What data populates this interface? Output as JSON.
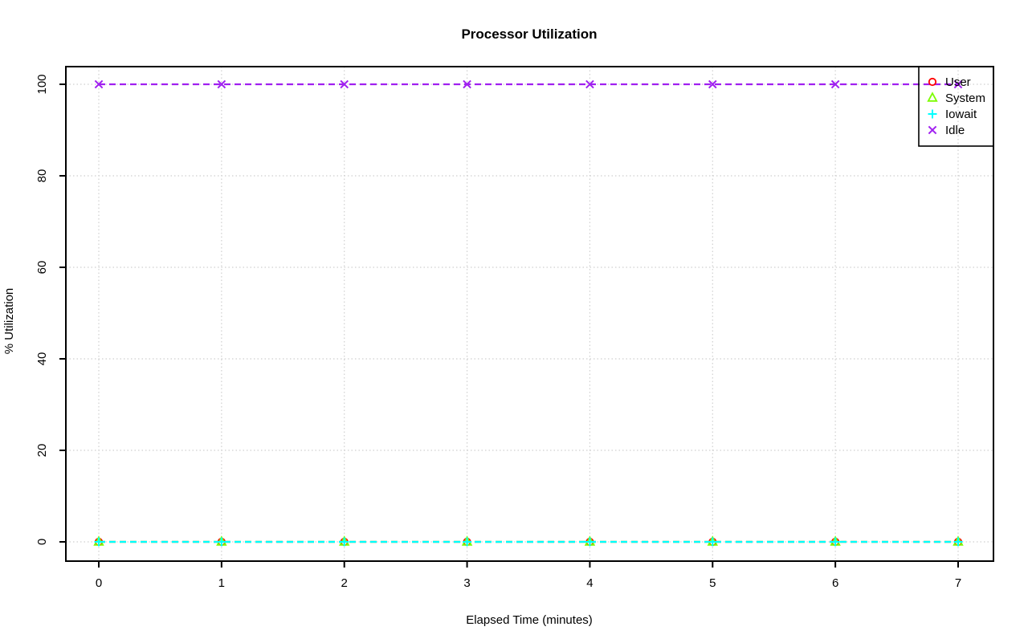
{
  "page": {
    "background_color": "#FFFFFF"
  },
  "chart_data": {
    "type": "line",
    "title": "Processor Utilization",
    "xlabel": "Elapsed Time (minutes)",
    "ylabel": "% Utilization",
    "x": [
      0,
      1,
      2,
      3,
      4,
      5,
      6,
      7
    ],
    "x_ticks": [
      "0",
      "1",
      "2",
      "3",
      "4",
      "5",
      "6",
      "7"
    ],
    "y_ticks": [
      "0",
      "20",
      "40",
      "60",
      "80",
      "100"
    ],
    "y_tick_values": [
      0,
      20,
      40,
      60,
      80,
      100
    ],
    "xlim": [
      0,
      7
    ],
    "ylim": [
      0,
      100
    ],
    "grid": {
      "visible": true,
      "style": "dotted",
      "color": "#CFCFCF"
    },
    "axis_color": "#000000",
    "legend": {
      "position": "top-right",
      "border_color": "#000000",
      "background": "transparent",
      "entries": [
        {
          "label": "User",
          "marker": "circle",
          "color": "#FF0000"
        },
        {
          "label": "System",
          "marker": "triangle",
          "color": "#7CFC00"
        },
        {
          "label": "Iowait",
          "marker": "plus",
          "color": "#00FFFF"
        },
        {
          "label": "Idle",
          "marker": "x",
          "color": "#A020F0"
        }
      ]
    },
    "series": [
      {
        "name": "User",
        "marker": "circle",
        "color": "#FF0000",
        "linestyle": "dashed",
        "values": [
          0,
          0,
          0,
          0,
          0,
          0,
          0,
          0
        ]
      },
      {
        "name": "System",
        "marker": "triangle",
        "color": "#7CFC00",
        "linestyle": "dashed",
        "values": [
          0,
          0,
          0,
          0,
          0,
          0,
          0,
          0
        ]
      },
      {
        "name": "Iowait",
        "marker": "plus",
        "color": "#00FFFF",
        "linestyle": "dashed",
        "values": [
          0,
          0,
          0,
          0,
          0,
          0,
          0,
          0
        ]
      },
      {
        "name": "Idle",
        "marker": "x",
        "color": "#A020F0",
        "linestyle": "dashed",
        "values": [
          100,
          100,
          100,
          100,
          100,
          100,
          100,
          100
        ]
      }
    ]
  }
}
